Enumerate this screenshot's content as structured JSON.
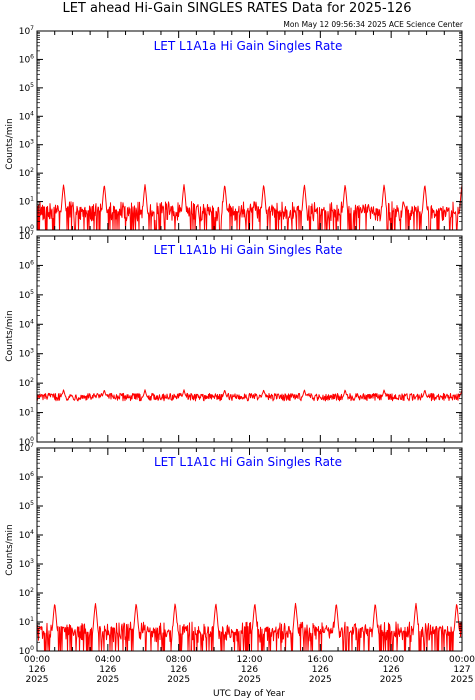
{
  "header": {
    "title": "LET ahead Hi-Gain SINGLES RATES Data for 2025-126",
    "timestamp": "Mon May 12 09:56:34 2025 ACE Science Center"
  },
  "colors": {
    "trace": "#ff0000",
    "panel_title": "#0000ff",
    "axis": "#000000"
  },
  "chart_data": [
    {
      "type": "line",
      "title": "LET L1A1a Hi Gain Singles Rate",
      "ylabel": "Counts/min",
      "xlabel": "UTC Day of Year",
      "y_scale": "log",
      "ylim": [
        1,
        10000000
      ],
      "xlim": [
        0,
        24
      ],
      "grid": false,
      "baseline": 4,
      "noise_range": [
        1,
        10
      ],
      "spike_times_hours": [
        1.5,
        3.8,
        6.1,
        8.3,
        10.6,
        12.8,
        15.1,
        17.4,
        19.6,
        21.9,
        24.0
      ],
      "spike_peak": 40,
      "series": [
        {
          "name": "",
          "color": "#ff0000"
        }
      ]
    },
    {
      "type": "line",
      "title": "LET L1A1b Hi Gain Singles Rate",
      "ylabel": "Counts/min",
      "xlabel": "UTC Day of Year",
      "y_scale": "log",
      "ylim": [
        1,
        10000000
      ],
      "xlim": [
        0,
        24
      ],
      "grid": false,
      "baseline": 33,
      "noise_range": [
        25,
        45
      ],
      "spike_times_hours": [
        1.5,
        3.8,
        6.1,
        8.3,
        10.6,
        12.8,
        15.1,
        17.4,
        19.6,
        21.9,
        24.0
      ],
      "spike_peak": 60,
      "series": [
        {
          "name": "",
          "color": "#ff0000"
        }
      ]
    },
    {
      "type": "line",
      "title": "LET L1A1c Hi Gain Singles Rate",
      "ylabel": "Counts/min",
      "xlabel": "UTC Day of Year",
      "y_scale": "log",
      "ylim": [
        1,
        10000000
      ],
      "xlim": [
        0,
        24
      ],
      "grid": false,
      "baseline": 5,
      "noise_range": [
        1,
        10
      ],
      "spike_times_hours": [
        1.0,
        3.3,
        5.6,
        7.8,
        10.1,
        12.3,
        14.6,
        16.9,
        19.1,
        21.4,
        23.7
      ],
      "spike_peak": 45,
      "series": [
        {
          "name": "",
          "color": "#ff0000"
        }
      ]
    }
  ],
  "y_tick_labels": [
    {
      "base": "10",
      "exp": "0"
    },
    {
      "base": "10",
      "exp": "1"
    },
    {
      "base": "10",
      "exp": "2"
    },
    {
      "base": "10",
      "exp": "3"
    },
    {
      "base": "10",
      "exp": "4"
    },
    {
      "base": "10",
      "exp": "5"
    },
    {
      "base": "10",
      "exp": "6"
    },
    {
      "base": "10",
      "exp": "7"
    }
  ],
  "x_tick_labels": [
    {
      "time": "00:00",
      "doy": "126",
      "year": "2025"
    },
    {
      "time": "04:00",
      "doy": "126",
      "year": "2025"
    },
    {
      "time": "08:00",
      "doy": "126",
      "year": "2025"
    },
    {
      "time": "12:00",
      "doy": "126",
      "year": "2025"
    },
    {
      "time": "16:00",
      "doy": "126",
      "year": "2025"
    },
    {
      "time": "20:00",
      "doy": "126",
      "year": "2025"
    },
    {
      "time": "00:00",
      "doy": "127",
      "year": "2025"
    }
  ]
}
